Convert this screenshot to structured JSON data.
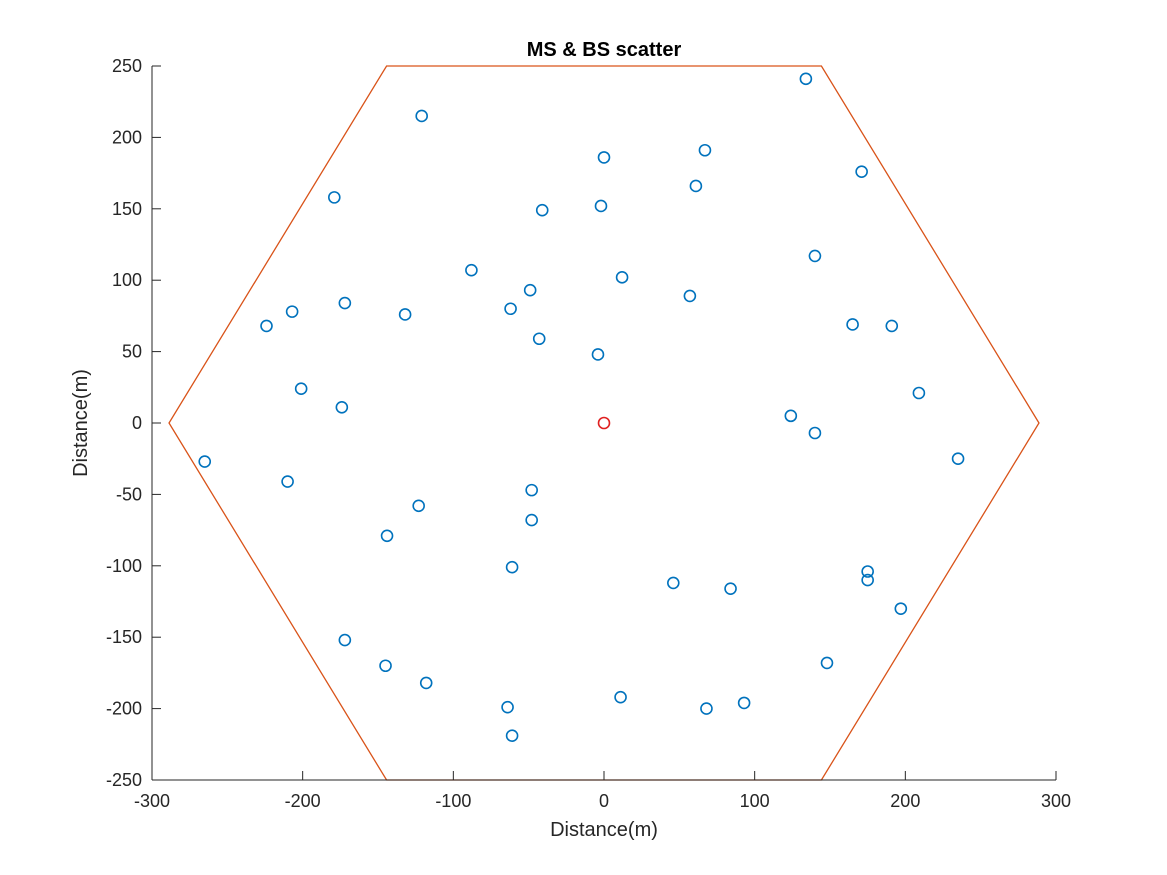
{
  "chart_data": {
    "type": "scatter",
    "title": "MS & BS scatter",
    "xlabel": "Distance(m)",
    "ylabel": "Distance(m)",
    "xlim": [
      -300,
      300
    ],
    "ylim": [
      -250,
      250
    ],
    "xticks": [
      -300,
      -200,
      -100,
      0,
      100,
      200,
      300
    ],
    "yticks": [
      -250,
      -200,
      -150,
      -100,
      -50,
      0,
      50,
      100,
      150,
      200,
      250
    ],
    "grid": false,
    "legend": false,
    "series": [
      {
        "marker": "circle",
        "color": "#0072BD",
        "points": [
          [
            134,
            241
          ],
          [
            -121,
            215
          ],
          [
            67,
            191
          ],
          [
            0,
            186
          ],
          [
            171,
            176
          ],
          [
            61,
            166
          ],
          [
            -179,
            158
          ],
          [
            -2,
            152
          ],
          [
            -41,
            149
          ],
          [
            140,
            117
          ],
          [
            -88,
            107
          ],
          [
            12,
            102
          ],
          [
            -49,
            93
          ],
          [
            57,
            89
          ],
          [
            -172,
            84
          ],
          [
            -207,
            78
          ],
          [
            -62,
            80
          ],
          [
            -132,
            76
          ],
          [
            -224,
            68
          ],
          [
            165,
            69
          ],
          [
            191,
            68
          ],
          [
            -43,
            59
          ],
          [
            -4,
            48
          ],
          [
            -201,
            24
          ],
          [
            209,
            21
          ],
          [
            -174,
            11
          ],
          [
            124,
            5
          ],
          [
            140,
            -7
          ],
          [
            -265,
            -27
          ],
          [
            235,
            -25
          ],
          [
            -210,
            -41
          ],
          [
            -48,
            -47
          ],
          [
            -123,
            -58
          ],
          [
            -48,
            -68
          ],
          [
            -144,
            -79
          ],
          [
            -61,
            -101
          ],
          [
            175,
            -104
          ],
          [
            175,
            -110
          ],
          [
            46,
            -112
          ],
          [
            84,
            -116
          ],
          [
            197,
            -130
          ],
          [
            -172,
            -152
          ],
          [
            148,
            -168
          ],
          [
            -145,
            -170
          ],
          [
            -118,
            -182
          ],
          [
            11,
            -192
          ],
          [
            93,
            -196
          ],
          [
            -64,
            -199
          ],
          [
            68,
            -200
          ],
          [
            -61,
            -219
          ]
        ]
      },
      {
        "marker": "circle",
        "color": "#E02020",
        "points": [
          [
            0,
            0
          ]
        ]
      },
      {
        "marker": "line",
        "color": "#D95319",
        "closed": true,
        "points": [
          [
            288.7,
            0
          ],
          [
            144.3,
            250
          ],
          [
            -144.3,
            250
          ],
          [
            -288.7,
            0
          ],
          [
            -144.3,
            -250
          ],
          [
            144.3,
            -250
          ]
        ]
      }
    ]
  }
}
